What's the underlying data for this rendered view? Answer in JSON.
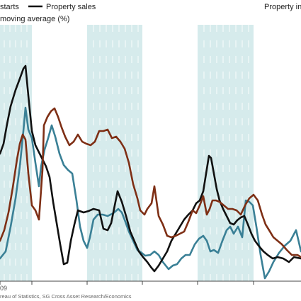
{
  "chart_data": {
    "type": "line",
    "legend_placement": "top",
    "legend": {
      "left_label": "starts",
      "middle_label": "Property sales",
      "right_label": "Property inve",
      "second_line": "moving average (%)"
    },
    "x_tick_labels": [
      "09"
    ],
    "source": "reau of Statistics, SG Cross Asset Research/Economics",
    "shaded_bands": [
      [
        0,
        45
      ],
      [
        123,
        201
      ],
      [
        279,
        358
      ]
    ],
    "y_range": [
      0,
      400
    ],
    "x_range": [
      0,
      425
    ],
    "series": [
      {
        "key": "teal",
        "color": "#3a8096",
        "points": [
          [
            0,
            330
          ],
          [
            8,
            320
          ],
          [
            15,
            285
          ],
          [
            22,
            245
          ],
          [
            28,
            200
          ],
          [
            33,
            150
          ],
          [
            36,
            117
          ],
          [
            40,
            148
          ],
          [
            45,
            160
          ],
          [
            50,
            195
          ],
          [
            55,
            228
          ],
          [
            58,
            200
          ],
          [
            63,
            176
          ],
          [
            68,
            160
          ],
          [
            73,
            142
          ],
          [
            78,
            158
          ],
          [
            84,
            182
          ],
          [
            90,
            198
          ],
          [
            96,
            205
          ],
          [
            102,
            210
          ],
          [
            108,
            248
          ],
          [
            113,
            285
          ],
          [
            118,
            305
          ],
          [
            123,
            315
          ],
          [
            127,
            300
          ],
          [
            132,
            275
          ],
          [
            138,
            268
          ],
          [
            145,
            268
          ],
          [
            152,
            270
          ],
          [
            160,
            266
          ],
          [
            167,
            260
          ],
          [
            172,
            265
          ],
          [
            177,
            278
          ],
          [
            182,
            292
          ],
          [
            188,
            305
          ],
          [
            194,
            318
          ],
          [
            200,
            322
          ],
          [
            205,
            326
          ],
          [
            212,
            325
          ],
          [
            218,
            320
          ],
          [
            224,
            325
          ],
          [
            230,
            335
          ],
          [
            238,
            345
          ],
          [
            244,
            340
          ],
          [
            250,
            338
          ],
          [
            256,
            330
          ],
          [
            262,
            325
          ],
          [
            268,
            325
          ],
          [
            275,
            310
          ],
          [
            281,
            302
          ],
          [
            287,
            298
          ],
          [
            292,
            305
          ],
          [
            297,
            320
          ],
          [
            302,
            318
          ],
          [
            308,
            322
          ],
          [
            314,
            305
          ],
          [
            320,
            290
          ],
          [
            325,
            285
          ],
          [
            330,
            295
          ],
          [
            336,
            285
          ],
          [
            342,
            300
          ],
          [
            347,
            248
          ],
          [
            352,
            250
          ],
          [
            357,
            255
          ],
          [
            362,
            285
          ],
          [
            368,
            325
          ],
          [
            374,
            358
          ],
          [
            380,
            348
          ],
          [
            386,
            335
          ],
          [
            394,
            322
          ],
          [
            402,
            312
          ],
          [
            410,
            305
          ],
          [
            418,
            290
          ],
          [
            425,
            320
          ]
        ]
      },
      {
        "key": "black",
        "color": "#111111",
        "points": [
          [
            0,
            182
          ],
          [
            5,
            168
          ],
          [
            10,
            140
          ],
          [
            15,
            115
          ],
          [
            22,
            92
          ],
          [
            28,
            76
          ],
          [
            33,
            62
          ],
          [
            36,
            58
          ],
          [
            40,
            100
          ],
          [
            45,
            150
          ],
          [
            50,
            170
          ],
          [
            55,
            180
          ],
          [
            60,
            190
          ],
          [
            65,
            200
          ],
          [
            70,
            215
          ],
          [
            75,
            250
          ],
          [
            80,
            280
          ],
          [
            85,
            310
          ],
          [
            90,
            338
          ],
          [
            95,
            336
          ],
          [
            100,
            305
          ],
          [
            105,
            282
          ],
          [
            110,
            262
          ],
          [
            118,
            265
          ],
          [
            125,
            263
          ],
          [
            132,
            260
          ],
          [
            140,
            262
          ],
          [
            146,
            288
          ],
          [
            152,
            290
          ],
          [
            157,
            280
          ],
          [
            162,
            255
          ],
          [
            166,
            235
          ],
          [
            172,
            250
          ],
          [
            178,
            270
          ],
          [
            184,
            292
          ],
          [
            190,
            306
          ],
          [
            196,
            320
          ],
          [
            202,
            328
          ],
          [
            208,
            335
          ],
          [
            213,
            342
          ],
          [
            218,
            348
          ],
          [
            224,
            340
          ],
          [
            230,
            330
          ],
          [
            236,
            320
          ],
          [
            242,
            305
          ],
          [
            248,
            295
          ],
          [
            254,
            285
          ],
          [
            260,
            275
          ],
          [
            266,
            268
          ],
          [
            272,
            262
          ],
          [
            277,
            252
          ],
          [
            282,
            248
          ],
          [
            287,
            235
          ],
          [
            291,
            210
          ],
          [
            295,
            185
          ],
          [
            298,
            188
          ],
          [
            302,
            210
          ],
          [
            306,
            232
          ],
          [
            310,
            248
          ],
          [
            315,
            260
          ],
          [
            320,
            270
          ],
          [
            325,
            280
          ],
          [
            330,
            282
          ],
          [
            335,
            276
          ],
          [
            340,
            272
          ],
          [
            345,
            270
          ],
          [
            350,
            282
          ],
          [
            355,
            295
          ],
          [
            360,
            305
          ],
          [
            366,
            313
          ],
          [
            372,
            320
          ],
          [
            378,
            325
          ],
          [
            385,
            330
          ],
          [
            392,
            328
          ],
          [
            400,
            330
          ],
          [
            408,
            335
          ],
          [
            415,
            328
          ],
          [
            425,
            330
          ]
        ]
      },
      {
        "key": "brown",
        "color": "#7e2f15",
        "points": [
          [
            0,
            305
          ],
          [
            6,
            290
          ],
          [
            12,
            265
          ],
          [
            18,
            230
          ],
          [
            24,
            190
          ],
          [
            28,
            168
          ],
          [
            32,
            155
          ],
          [
            36,
            162
          ],
          [
            40,
            210
          ],
          [
            45,
            255
          ],
          [
            50,
            262
          ],
          [
            55,
            275
          ],
          [
            60,
            205
          ],
          [
            62,
            142
          ],
          [
            67,
            130
          ],
          [
            72,
            122
          ],
          [
            77,
            118
          ],
          [
            82,
            130
          ],
          [
            87,
            145
          ],
          [
            92,
            158
          ],
          [
            98,
            170
          ],
          [
            104,
            165
          ],
          [
            110,
            155
          ],
          [
            116,
            165
          ],
          [
            122,
            168
          ],
          [
            128,
            170
          ],
          [
            134,
            165
          ],
          [
            140,
            150
          ],
          [
            146,
            150
          ],
          [
            152,
            148
          ],
          [
            158,
            160
          ],
          [
            164,
            158
          ],
          [
            170,
            165
          ],
          [
            176,
            175
          ],
          [
            182,
            195
          ],
          [
            188,
            225
          ],
          [
            194,
            245
          ],
          [
            198,
            262
          ],
          [
            204,
            268
          ],
          [
            208,
            260
          ],
          [
            214,
            252
          ],
          [
            218,
            228
          ],
          [
            224,
            270
          ],
          [
            230,
            282
          ],
          [
            236,
            298
          ],
          [
            242,
            300
          ],
          [
            248,
            298
          ],
          [
            254,
            295
          ],
          [
            260,
            292
          ],
          [
            266,
            278
          ],
          [
            272,
            262
          ],
          [
            277,
            266
          ],
          [
            282,
            255
          ],
          [
            287,
            242
          ],
          [
            292,
            268
          ],
          [
            296,
            260
          ],
          [
            300,
            248
          ],
          [
            305,
            248
          ],
          [
            310,
            250
          ],
          [
            316,
            255
          ],
          [
            322,
            260
          ],
          [
            328,
            260
          ],
          [
            334,
            262
          ],
          [
            340,
            268
          ],
          [
            346,
            255
          ],
          [
            352,
            245
          ],
          [
            358,
            240
          ],
          [
            364,
            248
          ],
          [
            370,
            268
          ],
          [
            375,
            282
          ],
          [
            380,
            290
          ],
          [
            386,
            300
          ],
          [
            392,
            305
          ],
          [
            398,
            310
          ],
          [
            405,
            318
          ],
          [
            412,
            325
          ],
          [
            420,
            325
          ],
          [
            425,
            328
          ]
        ]
      }
    ]
  }
}
